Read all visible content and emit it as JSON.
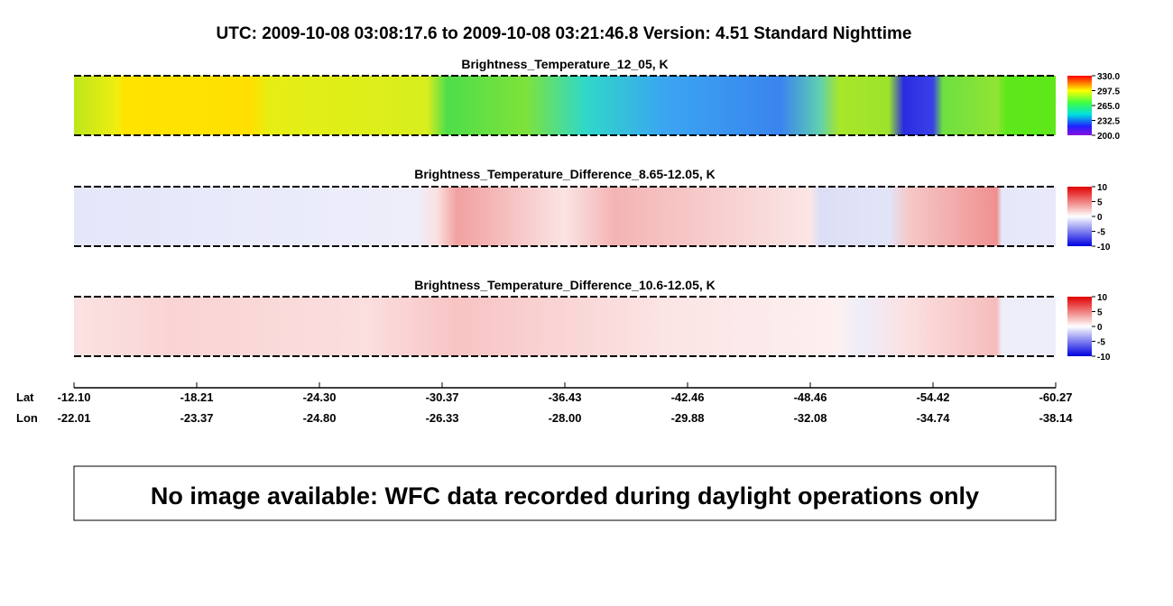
{
  "header": {
    "title": "UTC:  2009-10-08   03:08:17.6  to  2009-10-08   03:21:46.8    Version: 4.51  Standard Nighttime"
  },
  "panels": [
    {
      "title": "Brightness_Temperature_12_05, K",
      "colorbar_ticks": [
        "330.0",
        "297.5",
        "265.0",
        "232.5",
        "200.0"
      ]
    },
    {
      "title": "Brightness_Temperature_Difference_8.65-12.05, K",
      "colorbar_ticks": [
        "10",
        "5",
        "0",
        "-5",
        "-10"
      ]
    },
    {
      "title": "Brightness_Temperature_Difference_10.6-12.05, K",
      "colorbar_ticks": [
        "10",
        "5",
        "0",
        "-5",
        "-10"
      ]
    }
  ],
  "axis": {
    "row_labels": [
      "Lat",
      "Lon"
    ],
    "lat": [
      "-12.10",
      "-18.21",
      "-24.30",
      "-30.37",
      "-36.43",
      "-42.46",
      "-48.46",
      "-54.42",
      "-60.27"
    ],
    "lon": [
      "-22.01",
      "-23.37",
      "-24.80",
      "-26.33",
      "-28.00",
      "-29.88",
      "-32.08",
      "-34.74",
      "-38.14"
    ]
  },
  "notice": "No image available: WFC data recorded during daylight operations only"
}
